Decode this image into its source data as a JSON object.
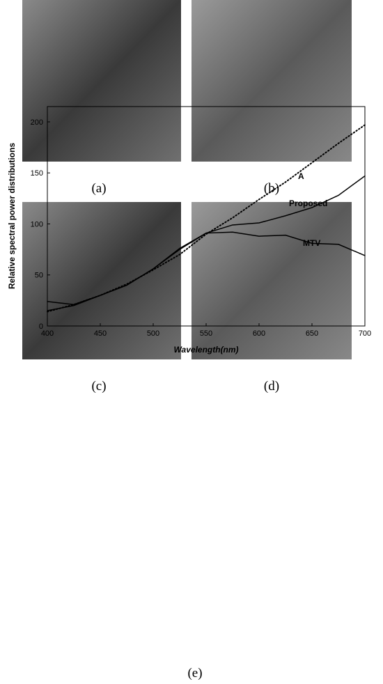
{
  "panels": [
    {
      "label": "(a)"
    },
    {
      "label": "(b)"
    },
    {
      "label": "(c)"
    },
    {
      "label": "(d)"
    }
  ],
  "chart_caption": "(e)",
  "chart_data": {
    "type": "line",
    "x_label": "Wavelength(nm)",
    "y_label": "Relative spectral power distributions",
    "x": [
      400,
      425,
      450,
      475,
      500,
      525,
      550,
      575,
      600,
      625,
      650,
      675,
      700
    ],
    "series": [
      {
        "name": "A",
        "color": "#000000",
        "style": "dotted",
        "values": [
          14,
          21,
          30,
          41,
          55,
          70,
          90,
          106,
          124,
          141,
          160,
          179,
          197
        ]
      },
      {
        "name": "Proposed",
        "color": "#000000",
        "style": "solid",
        "values": [
          15,
          20,
          30,
          40,
          56,
          75,
          91,
          99,
          101,
          108,
          116,
          128,
          147
        ]
      },
      {
        "name": "MTV",
        "color": "#000000",
        "style": "solid",
        "values": [
          24,
          21,
          30,
          40,
          56,
          76,
          91,
          92,
          88,
          89,
          81,
          80,
          69
        ]
      }
    ],
    "xlim": [
      400,
      700
    ],
    "xticks": [
      400,
      450,
      500,
      550,
      600,
      650,
      700
    ],
    "ylim": [
      0,
      215
    ],
    "yticks": [
      0,
      50,
      100,
      150,
      200
    ],
    "grid": false
  }
}
